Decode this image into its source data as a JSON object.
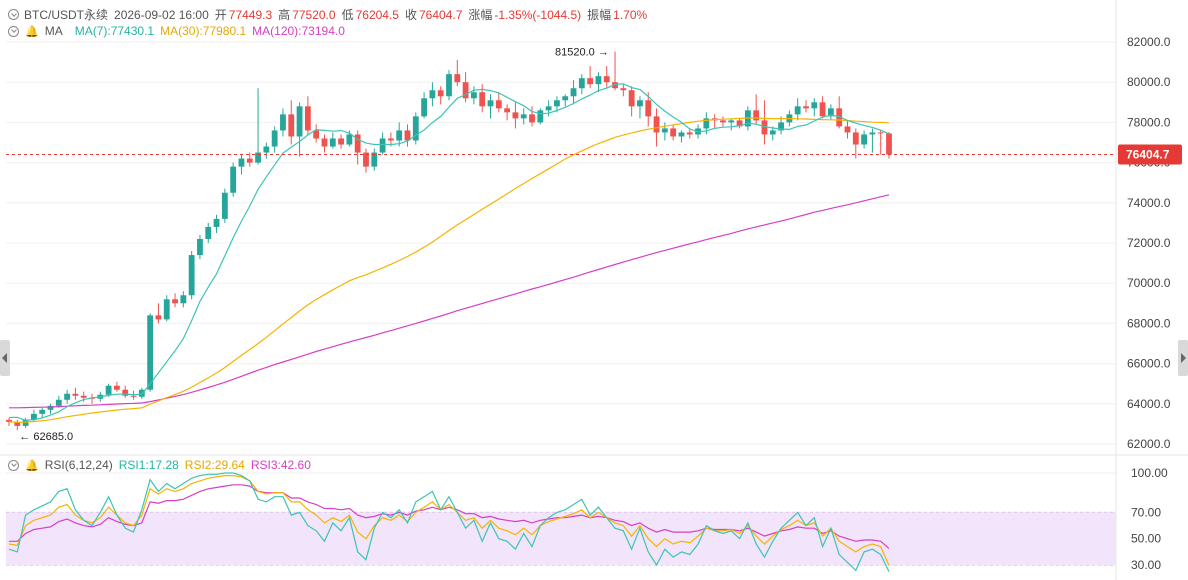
{
  "header": {
    "symbol": "BTC/USDT永续",
    "datetime": "2026-09-02 16:00",
    "open_label": "开",
    "open": "77449.3",
    "high_label": "高",
    "high": "77520.0",
    "low_label": "低",
    "low": "76204.5",
    "close_label": "收",
    "close": "76404.7",
    "change_label": "涨幅",
    "change": "-1.35%(-1044.5)",
    "amp_label": "振幅",
    "amp": "1.70%"
  },
  "ma_legend": {
    "label": "MA",
    "ma7": "MA(7):77430.1",
    "ma30": "MA(30):77980.1",
    "ma120": "MA(120):73194.0"
  },
  "rsi_legend": {
    "label": "RSI(6,12,24)",
    "rsi1": "RSI1:17.28",
    "rsi2": "RSI2:29.64",
    "rsi3": "RSI3:42.60"
  },
  "price_axis": [
    "82000.0",
    "80000.0",
    "78000.0",
    "76000.0",
    "74000.0",
    "72000.0",
    "70000.0",
    "68000.0",
    "66000.0",
    "64000.0",
    "62000.0"
  ],
  "rsi_axis": [
    "100.00",
    "70.00",
    "50.00",
    "30.00"
  ],
  "current_price_label": "76404.7",
  "high_marker": "81520.0",
  "low_marker": "62685.0",
  "colors": {
    "up": "#26a69a",
    "down": "#ef5350",
    "ma7": "#3cc4b4",
    "ma30": "#f5b400",
    "ma120": "#d63fc4",
    "rsi1": "#3cc4b4",
    "rsi2": "#f5b400",
    "rsi3": "#d63fc4",
    "band": "#f2e4fa"
  },
  "chart_data": {
    "type": "candlestick",
    "candles": [
      [
        63200,
        63300,
        62900,
        63100
      ],
      [
        63100,
        63200,
        62685,
        62900
      ],
      [
        62900,
        63300,
        62800,
        63200
      ],
      [
        63200,
        63700,
        63100,
        63500
      ],
      [
        63500,
        63800,
        63300,
        63700
      ],
      [
        63700,
        64000,
        63500,
        63900
      ],
      [
        63900,
        64400,
        63800,
        64200
      ],
      [
        64200,
        64700,
        64000,
        64500
      ],
      [
        64500,
        64800,
        64200,
        64400
      ],
      [
        64400,
        64600,
        64100,
        64300
      ],
      [
        64300,
        64500,
        64000,
        64250
      ],
      [
        64250,
        64600,
        64100,
        64450
      ],
      [
        64450,
        65000,
        64350,
        64900
      ],
      [
        64900,
        65100,
        64600,
        64700
      ],
      [
        64700,
        64900,
        64300,
        64400
      ],
      [
        64400,
        64650,
        64200,
        64350
      ],
      [
        64350,
        64800,
        64250,
        64700
      ],
      [
        64700,
        68500,
        64600,
        68400
      ],
      [
        68400,
        69000,
        68000,
        68200
      ],
      [
        68200,
        69400,
        68100,
        69200
      ],
      [
        69200,
        69500,
        68800,
        69000
      ],
      [
        69000,
        69600,
        68800,
        69400
      ],
      [
        69400,
        71600,
        69200,
        71400
      ],
      [
        71400,
        72400,
        71200,
        72200
      ],
      [
        72200,
        73000,
        72000,
        72800
      ],
      [
        72800,
        73400,
        72500,
        73200
      ],
      [
        73200,
        74700,
        73000,
        74500
      ],
      [
        74500,
        76000,
        74300,
        75800
      ],
      [
        75800,
        76400,
        75400,
        76200
      ],
      [
        76200,
        76500,
        75800,
        76000
      ],
      [
        76000,
        79700,
        75900,
        76500
      ],
      [
        76500,
        77000,
        76200,
        76800
      ],
      [
        76800,
        77800,
        76500,
        77600
      ],
      [
        77600,
        78700,
        77300,
        78400
      ],
      [
        78400,
        79100,
        76900,
        77300
      ],
      [
        77300,
        79000,
        76300,
        78800
      ],
      [
        78800,
        79300,
        77400,
        77600
      ],
      [
        77600,
        77900,
        77000,
        77200
      ],
      [
        77200,
        77400,
        76500,
        76800
      ],
      [
        76800,
        77500,
        76700,
        77200
      ],
      [
        77200,
        77400,
        76700,
        76900
      ],
      [
        76900,
        77600,
        76800,
        77400
      ],
      [
        77400,
        77600,
        75900,
        76500
      ],
      [
        76500,
        76700,
        75500,
        75800
      ],
      [
        75800,
        76700,
        75600,
        76500
      ],
      [
        76500,
        77500,
        76400,
        77200
      ],
      [
        77200,
        77500,
        76800,
        77100
      ],
      [
        77100,
        78000,
        76800,
        77600
      ],
      [
        77600,
        77900,
        76800,
        77100
      ],
      [
        77100,
        78500,
        76900,
        78300
      ],
      [
        78300,
        79500,
        78200,
        79200
      ],
      [
        79200,
        80000,
        78800,
        79600
      ],
      [
        79600,
        79800,
        78900,
        79300
      ],
      [
        79300,
        80600,
        79100,
        80400
      ],
      [
        80400,
        81100,
        79800,
        80000
      ],
      [
        80000,
        80500,
        79000,
        79200
      ],
      [
        79200,
        79800,
        78900,
        79500
      ],
      [
        79500,
        79900,
        78500,
        78800
      ],
      [
        78800,
        79400,
        78200,
        79100
      ],
      [
        79100,
        79500,
        78500,
        78700
      ],
      [
        78700,
        78900,
        78100,
        78500
      ],
      [
        78500,
        79000,
        77700,
        78200
      ],
      [
        78200,
        78700,
        77900,
        78400
      ],
      [
        78400,
        78800,
        77800,
        78000
      ],
      [
        78000,
        78700,
        77900,
        78600
      ],
      [
        78600,
        79100,
        78300,
        78800
      ],
      [
        78800,
        79300,
        78500,
        79100
      ],
      [
        79100,
        79400,
        78800,
        79300
      ],
      [
        79300,
        80100,
        78900,
        79700
      ],
      [
        79700,
        80400,
        79400,
        80200
      ],
      [
        80200,
        80800,
        79700,
        79900
      ],
      [
        79900,
        80500,
        79500,
        80300
      ],
      [
        80300,
        80800,
        79700,
        80000
      ],
      [
        80000,
        81520,
        79600,
        79700
      ],
      [
        79700,
        79900,
        79300,
        79600
      ],
      [
        79600,
        79800,
        78300,
        78800
      ],
      [
        78800,
        79300,
        78200,
        79100
      ],
      [
        79100,
        79500,
        77800,
        78300
      ],
      [
        78300,
        78700,
        76800,
        77500
      ],
      [
        77500,
        78000,
        77100,
        77700
      ],
      [
        77700,
        77900,
        77100,
        77300
      ],
      [
        77300,
        77600,
        77000,
        77500
      ],
      [
        77500,
        77700,
        77200,
        77400
      ],
      [
        77400,
        77900,
        77200,
        77700
      ],
      [
        77700,
        78500,
        77400,
        78200
      ],
      [
        78200,
        78400,
        77700,
        78100
      ],
      [
        78100,
        78300,
        77800,
        78000
      ],
      [
        78000,
        78200,
        77600,
        78100
      ],
      [
        78100,
        78200,
        77700,
        77800
      ],
      [
        77800,
        78800,
        77600,
        78600
      ],
      [
        78600,
        79400,
        77900,
        78100
      ],
      [
        78100,
        79100,
        76900,
        77400
      ],
      [
        77400,
        77800,
        77100,
        77600
      ],
      [
        77600,
        78300,
        77400,
        78000
      ],
      [
        78000,
        78600,
        77800,
        78400
      ],
      [
        78400,
        79200,
        78100,
        78800
      ],
      [
        78800,
        79100,
        78500,
        78700
      ],
      [
        78700,
        79200,
        78300,
        79000
      ],
      [
        79000,
        79300,
        78200,
        78300
      ],
      [
        78300,
        78900,
        78100,
        78700
      ],
      [
        78700,
        79300,
        77700,
        77800
      ],
      [
        77800,
        78100,
        77200,
        77500
      ],
      [
        77500,
        77700,
        76200,
        76900
      ],
      [
        76900,
        77600,
        76700,
        77400
      ],
      [
        77400,
        77700,
        76500,
        77500
      ],
      [
        77500,
        77600,
        76400,
        77449.3
      ],
      [
        77449.3,
        77520,
        76204.5,
        76404.7
      ]
    ],
    "ma7": [
      63320,
      63330,
      63180,
      63210,
      63300,
      63440,
      63600,
      63860,
      64050,
      64210,
      64300,
      64350,
      64420,
      64480,
      64480,
      64460,
      64480,
      64990,
      65540,
      66090,
      66630,
      67240,
      68130,
      69090,
      69800,
      70470,
      71360,
      72270,
      73090,
      73840,
      74670,
      75300,
      75890,
      76480,
      76770,
      77050,
      77380,
      77640,
      77600,
      77560,
      77590,
      77470,
      77160,
      76970,
      76900,
      76900,
      76900,
      76940,
      77070,
      77360,
      77620,
      77990,
      78300,
      78760,
      79200,
      79390,
      79600,
      79640,
      79580,
      79470,
      79250,
      79030,
      78830,
      78540,
      78430,
      78460,
      78590,
      78750,
      78940,
      79170,
      79360,
      79580,
      79700,
      79890,
      79920,
      79730,
      79630,
      79290,
      78900,
      78560,
      78270,
      78000,
      77670,
      77530,
      77580,
      77700,
      77760,
      77780,
      77840,
      77950,
      77910,
      77790,
      77720,
      77670,
      77650,
      77800,
      77870,
      78070,
      78260,
      78370,
      78290,
      78100,
      77960,
      77850,
      77750,
      77610,
      77430.1
    ],
    "ma30": [
      63100,
      63080,
      63090,
      63120,
      63160,
      63210,
      63280,
      63360,
      63420,
      63480,
      63540,
      63590,
      63640,
      63690,
      63730,
      63760,
      63800,
      63980,
      64140,
      64310,
      64460,
      64620,
      64830,
      65060,
      65290,
      65530,
      65800,
      66110,
      66410,
      66700,
      67000,
      67310,
      67640,
      67980,
      68290,
      68620,
      68920,
      69190,
      69430,
      69670,
      69890,
      70120,
      70280,
      70420,
      70590,
      70760,
      70940,
      71130,
      71330,
      71550,
      71790,
      72050,
      72330,
      72620,
      72900,
      73160,
      73420,
      73680,
      73930,
      74190,
      74450,
      74710,
      74960,
      75210,
      75450,
      75690,
      75930,
      76180,
      76390,
      76580,
      76770,
      76950,
      77100,
      77260,
      77370,
      77480,
      77570,
      77660,
      77730,
      77810,
      77880,
      77940,
      78000,
      78060,
      78100,
      78140,
      78160,
      78180,
      78200,
      78220,
      78220,
      78200,
      78190,
      78190,
      78190,
      78180,
      78170,
      78150,
      78140,
      78130,
      78120,
      78090,
      78060,
      78040,
      78010,
      78000,
      77980.1
    ],
    "ma120": [
      63800,
      63800,
      63810,
      63820,
      63830,
      63840,
      63860,
      63880,
      63900,
      63920,
      63930,
      63950,
      63970,
      63990,
      64010,
      64020,
      64040,
      64110,
      64190,
      64280,
      64370,
      64460,
      64570,
      64690,
      64810,
      64940,
      65070,
      65220,
      65370,
      65520,
      65670,
      65810,
      65950,
      66080,
      66210,
      66340,
      66470,
      66600,
      66720,
      66840,
      66960,
      67080,
      67190,
      67300,
      67410,
      67530,
      67640,
      67760,
      67880,
      68000,
      68120,
      68250,
      68370,
      68500,
      68630,
      68750,
      68870,
      68990,
      69110,
      69230,
      69350,
      69470,
      69590,
      69710,
      69820,
      69940,
      70060,
      70180,
      70300,
      70430,
      70560,
      70680,
      70810,
      70930,
      71050,
      71170,
      71290,
      71410,
      71520,
      71630,
      71740,
      71850,
      71960,
      72060,
      72170,
      72280,
      72380,
      72480,
      72590,
      72700,
      72800,
      72900,
      73000,
      73090,
      73200,
      73310,
      73420,
      73530,
      73620,
      73720,
      73810,
      73900,
      74000,
      74100,
      74200,
      74300,
      73194.0
    ],
    "rsi1": [
      42,
      40,
      68,
      72,
      75,
      78,
      86,
      88,
      72,
      64,
      60,
      70,
      82,
      68,
      58,
      55,
      72,
      95,
      86,
      92,
      88,
      92,
      96,
      98,
      99,
      99,
      100,
      100,
      98,
      94,
      80,
      78,
      82,
      82,
      68,
      70,
      60,
      56,
      48,
      62,
      56,
      66,
      40,
      34,
      58,
      70,
      66,
      72,
      62,
      78,
      82,
      86,
      72,
      82,
      70,
      58,
      64,
      48,
      62,
      50,
      48,
      42,
      54,
      44,
      60,
      66,
      70,
      72,
      76,
      80,
      68,
      74,
      66,
      58,
      56,
      42,
      58,
      40,
      30,
      42,
      36,
      40,
      38,
      46,
      60,
      56,
      54,
      56,
      50,
      62,
      46,
      36,
      48,
      58,
      64,
      70,
      60,
      66,
      44,
      58,
      38,
      32,
      26,
      40,
      42,
      38,
      17.28
    ],
    "rsi2": [
      46,
      45,
      60,
      64,
      66,
      68,
      74,
      76,
      68,
      64,
      62,
      66,
      74,
      68,
      62,
      60,
      68,
      88,
      84,
      88,
      86,
      88,
      92,
      94,
      96,
      97,
      98,
      98,
      97,
      94,
      86,
      84,
      85,
      85,
      78,
      78,
      72,
      68,
      62,
      66,
      63,
      68,
      55,
      50,
      60,
      66,
      64,
      68,
      63,
      70,
      74,
      78,
      72,
      76,
      70,
      64,
      66,
      58,
      64,
      58,
      56,
      53,
      58,
      53,
      60,
      63,
      65,
      67,
      69,
      72,
      66,
      70,
      66,
      62,
      60,
      52,
      60,
      50,
      44,
      50,
      46,
      48,
      47,
      52,
      58,
      56,
      56,
      57,
      54,
      60,
      52,
      46,
      52,
      57,
      60,
      64,
      60,
      62,
      52,
      58,
      48,
      44,
      40,
      44,
      46,
      44,
      29.64
    ],
    "rsi3": [
      48,
      48,
      54,
      57,
      58,
      59,
      63,
      65,
      62,
      60,
      59,
      61,
      66,
      63,
      61,
      60,
      62,
      78,
      77,
      79,
      79,
      80,
      83,
      86,
      88,
      89,
      90,
      91,
      91,
      90,
      86,
      85,
      85,
      85,
      81,
      81,
      78,
      76,
      73,
      73,
      72,
      73,
      68,
      66,
      67,
      69,
      68,
      70,
      68,
      71,
      72,
      74,
      72,
      74,
      72,
      69,
      69,
      66,
      67,
      65,
      64,
      63,
      64,
      62,
      64,
      65,
      66,
      66,
      67,
      68,
      66,
      67,
      66,
      64,
      63,
      60,
      62,
      58,
      55,
      57,
      55,
      55,
      55,
      56,
      58,
      57,
      57,
      57,
      56,
      58,
      55,
      52,
      54,
      56,
      57,
      59,
      58,
      58,
      54,
      56,
      52,
      50,
      48,
      49,
      49,
      48,
      42.6
    ]
  }
}
